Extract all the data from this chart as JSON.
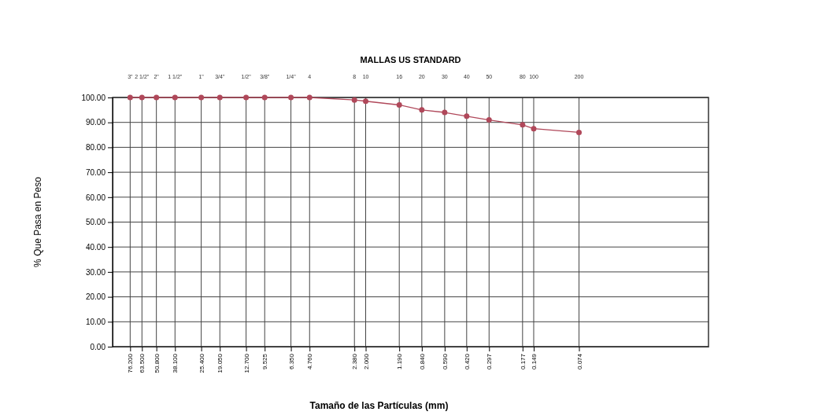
{
  "chart_data": {
    "type": "line",
    "title": "MALLAS US STANDARD",
    "xlabel": "Tamaño de las Partículas (mm)",
    "ylabel": "% Que Pasa en Peso",
    "log": "x",
    "grid": true,
    "marker": "circle",
    "line_style": "solid",
    "xlim": [
      100,
      0.01
    ],
    "ylim": [
      0,
      100
    ],
    "xticks": [
      {
        "value": 76.2,
        "label": "76.200"
      },
      {
        "value": 63.5,
        "label": "63.500"
      },
      {
        "value": 50.8,
        "label": "50.800"
      },
      {
        "value": 38.1,
        "label": "38.100"
      },
      {
        "value": 25.4,
        "label": "25.400"
      },
      {
        "value": 19.05,
        "label": "19.050"
      },
      {
        "value": 12.7,
        "label": "12.700"
      },
      {
        "value": 9.525,
        "label": "9.525"
      },
      {
        "value": 6.35,
        "label": "6.350"
      },
      {
        "value": 4.76,
        "label": "4.760"
      },
      {
        "value": 2.38,
        "label": "2.380"
      },
      {
        "value": 2.0,
        "label": "2.000"
      },
      {
        "value": 1.19,
        "label": "1.190"
      },
      {
        "value": 0.84,
        "label": "0.840"
      },
      {
        "value": 0.59,
        "label": "0.590"
      },
      {
        "value": 0.42,
        "label": "0.420"
      },
      {
        "value": 0.297,
        "label": "0.297"
      },
      {
        "value": 0.177,
        "label": "0.177"
      },
      {
        "value": 0.149,
        "label": "0.149"
      },
      {
        "value": 0.074,
        "label": "0.074"
      }
    ],
    "annotations": [
      "3\"",
      "2 1/2\"",
      "2\"",
      "1 1/2\"",
      "1\"",
      "3/4\"",
      "1/2\"",
      "3/8\"",
      "1/4\"",
      "4",
      "8",
      "10",
      "16",
      "20",
      "30",
      "40",
      "50",
      "80",
      "100",
      "200"
    ],
    "yticks": [
      {
        "value": 0,
        "label": "0.00"
      },
      {
        "value": 10,
        "label": "10.00"
      },
      {
        "value": 20,
        "label": "20.00"
      },
      {
        "value": 30,
        "label": "30.00"
      },
      {
        "value": 40,
        "label": "40.00"
      },
      {
        "value": 50,
        "label": "50.00"
      },
      {
        "value": 60,
        "label": "60.00"
      },
      {
        "value": 70,
        "label": "70.00"
      },
      {
        "value": 80,
        "label": "80.00"
      },
      {
        "value": 90,
        "label": "90.00"
      },
      {
        "value": 100,
        "label": "100.00"
      }
    ],
    "x": [
      76.2,
      63.5,
      50.8,
      38.1,
      25.4,
      19.05,
      12.7,
      9.525,
      6.35,
      4.76,
      2.38,
      2.0,
      1.19,
      0.84,
      0.59,
      0.42,
      0.297,
      0.177,
      0.149,
      0.074
    ],
    "series": [
      {
        "color": "#b0485a",
        "values": [
          100,
          100,
          100,
          100,
          100,
          100,
          100,
          100,
          100,
          100,
          99,
          98.5,
          97,
          95,
          94,
          92.5,
          91,
          89,
          87.5,
          86
        ]
      }
    ]
  }
}
